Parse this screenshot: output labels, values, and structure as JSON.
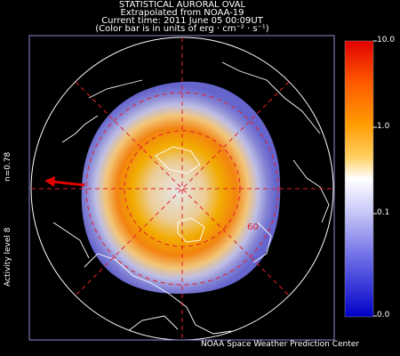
{
  "header": {
    "title": "STATISTICAL AURORAL OVAL",
    "source": "Extrapolated from NOAA-19",
    "time": "Current time: 2011 June 05 00:09UT",
    "units": "(Color bar is in units of erg · cm⁻² · s⁻¹)"
  },
  "side_labels": {
    "n_value": "n=0.78",
    "activity": "Activity level 8"
  },
  "map": {
    "latitude_label": "60"
  },
  "colorbar": {
    "ticks": [
      "10.0",
      "1.0",
      "0.1",
      "0.0"
    ]
  },
  "footer": {
    "credit": "NOAA Space Weather Prediction Center"
  }
}
